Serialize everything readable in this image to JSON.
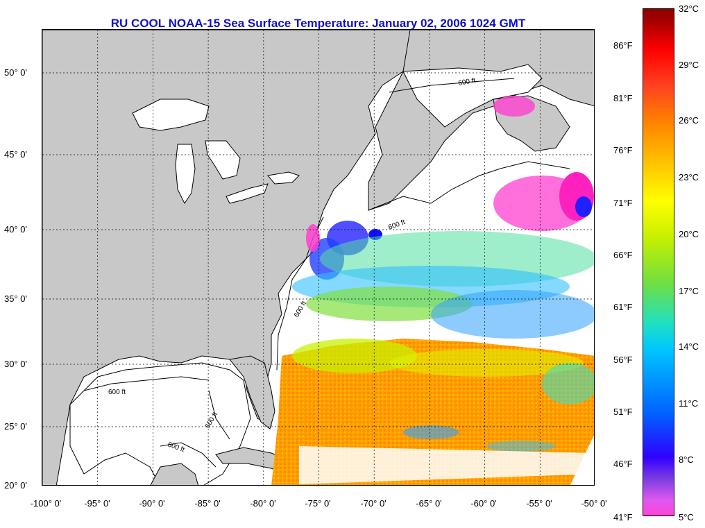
{
  "title": "RU COOL  NOAA-15  Sea Surface Temperature:  January 02, 2006 1024 GMT",
  "latitude_labels": [
    "50° 0'",
    "45° 0'",
    "40° 0'",
    "35° 0'",
    "30° 0'",
    "25° 0'",
    "20° 0'"
  ],
  "longitude_labels": [
    "-100° 0'",
    "-95° 0'",
    "-90° 0'",
    "-85° 0'",
    "-80° 0'",
    "-75° 0'",
    "-70° 0'",
    "-65° 0'",
    "-60° 0'",
    "-55° 0'",
    "-50° 0'"
  ],
  "colorbar": {
    "celsius_labels": [
      "32°C",
      "29°C",
      "26°C",
      "23°C",
      "20°C",
      "17°C",
      "14°C",
      "11°C",
      "8°C",
      "5°C"
    ],
    "fahrenheit_labels": [
      "86°F",
      "81°F",
      "76°F",
      "71°F",
      "66°F",
      "61°F",
      "56°F",
      "51°F",
      "46°F",
      "41°F"
    ]
  },
  "isobath_labels": [
    "600 ft",
    "600 ft",
    "600 ft",
    "600 ft",
    "600 ft",
    "600 ft"
  ],
  "colors": {
    "title": "#1010c8",
    "land": "#c8c8c8",
    "cloud": "#ffffff",
    "warm": "#ff9a00",
    "cool": "#3030ff",
    "cold": "#ff30c8"
  }
}
